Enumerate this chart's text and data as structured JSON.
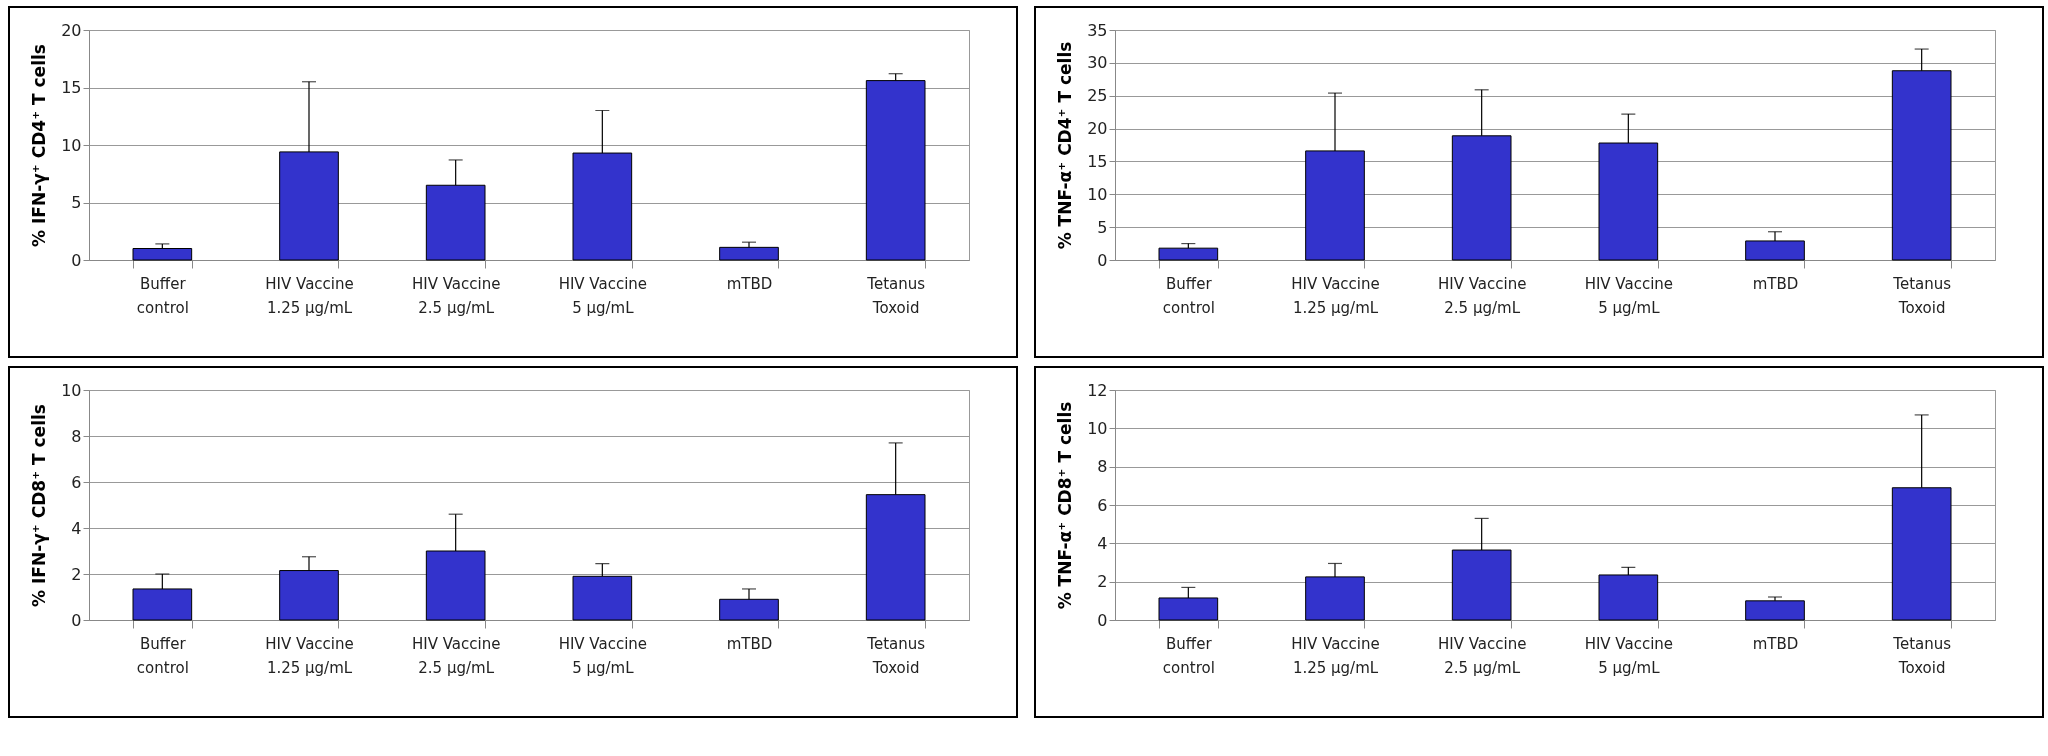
{
  "chart_data": [
    {
      "type": "bar",
      "ylabel": "% IFN-γ⁺ CD4⁺ T cells",
      "categories": [
        "Buffer\ncontrol",
        "HIV Vaccine\n1.25 µg/mL",
        "HIV Vaccine\n2.5 µg/mL",
        "HIV Vaccine\n5 µg/mL",
        "mTBD",
        "Tetanus\nToxoid"
      ],
      "values": [
        1.0,
        9.4,
        6.5,
        9.3,
        1.1,
        15.6
      ],
      "errors": [
        [
          1.0,
          1.4
        ],
        [
          9.4,
          15.5
        ],
        [
          6.5,
          8.7
        ],
        [
          9.3,
          13.0
        ],
        [
          1.1,
          1.55
        ],
        [
          15.6,
          16.2
        ]
      ],
      "color": "#3333cc",
      "ylim": [
        0,
        20
      ],
      "yticks": [
        0,
        5,
        10,
        15,
        20
      ],
      "grid": "y"
    },
    {
      "type": "bar",
      "ylabel": "% TNF-α⁺ CD4⁺ T cells",
      "categories": [
        "Buffer\ncontrol",
        "HIV Vaccine\n1.25 µg/mL",
        "HIV Vaccine\n2.5 µg/mL",
        "HIV Vaccine\n5 µg/mL",
        "mTBD",
        "Tetanus\nToxoid"
      ],
      "values": [
        1.8,
        16.6,
        18.9,
        17.8,
        2.9,
        28.8
      ],
      "errors": [
        [
          1.8,
          2.5
        ],
        [
          16.6,
          25.4
        ],
        [
          18.9,
          25.9
        ],
        [
          17.8,
          22.2
        ],
        [
          2.9,
          4.3
        ],
        [
          28.8,
          32.1
        ]
      ],
      "color": "#3333cc",
      "ylim": [
        0,
        35
      ],
      "yticks": [
        0,
        5,
        10,
        15,
        20,
        25,
        30,
        35
      ],
      "grid": "y"
    },
    {
      "type": "bar",
      "ylabel": "% IFN-γ⁺ CD8⁺ T cells",
      "categories": [
        "Buffer\ncontrol",
        "HIV Vaccine\n1.25 µg/mL",
        "HIV Vaccine\n2.5 µg/mL",
        "HIV Vaccine\n5 µg/mL",
        "mTBD",
        "Tetanus\nToxoid"
      ],
      "values": [
        1.35,
        2.15,
        3.0,
        1.9,
        0.9,
        5.45
      ],
      "errors": [
        [
          1.35,
          2.0
        ],
        [
          2.15,
          2.75
        ],
        [
          3.0,
          4.6
        ],
        [
          1.9,
          2.45
        ],
        [
          0.9,
          1.35
        ],
        [
          5.45,
          7.7
        ]
      ],
      "color": "#3333cc",
      "ylim": [
        0,
        10
      ],
      "yticks": [
        0,
        2,
        4,
        6,
        8,
        10
      ],
      "grid": "y"
    },
    {
      "type": "bar",
      "ylabel": "% TNF-α⁺ CD8⁺ T cells",
      "categories": [
        "Buffer\ncontrol",
        "HIV Vaccine\n1.25 µg/mL",
        "HIV Vaccine\n2.5 µg/mL",
        "HIV Vaccine\n5 µg/mL",
        "mTBD",
        "Tetanus\nToxoid"
      ],
      "values": [
        1.15,
        2.25,
        3.65,
        2.35,
        1.0,
        6.9
      ],
      "errors": [
        [
          1.15,
          1.7
        ],
        [
          2.25,
          2.95
        ],
        [
          3.65,
          5.3
        ],
        [
          2.35,
          2.75
        ],
        [
          1.0,
          1.2
        ],
        [
          6.9,
          10.7
        ]
      ],
      "color": "#3333cc",
      "ylim": [
        0,
        12
      ],
      "yticks": [
        0,
        2,
        4,
        6,
        8,
        10,
        12
      ],
      "grid": "y"
    }
  ]
}
